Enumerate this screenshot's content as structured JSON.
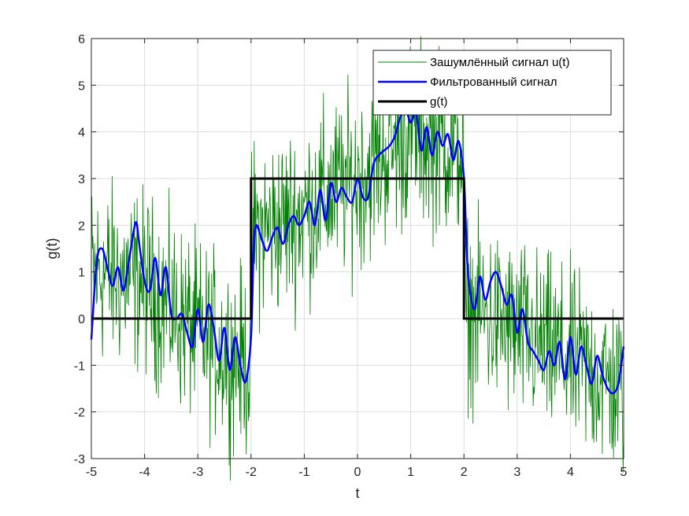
{
  "chart_data": {
    "type": "line",
    "title": "",
    "xlabel": "t",
    "ylabel": "g(t)",
    "xlim": [
      -5,
      5
    ],
    "ylim": [
      -3,
      6
    ],
    "grid": true,
    "legend_position": "top-right",
    "xticks": [
      -5,
      -4,
      -3,
      -2,
      -1,
      0,
      1,
      2,
      3,
      4,
      5
    ],
    "yticks": [
      -3,
      -2,
      -1,
      0,
      1,
      2,
      3,
      4,
      5,
      6
    ],
    "xtick_labels": [
      "-5",
      "-4",
      "-3",
      "-2",
      "-1",
      "0",
      "1",
      "2",
      "3",
      "4",
      "5"
    ],
    "ytick_labels": [
      "-3",
      "-2",
      "-1",
      "0",
      "1",
      "2",
      "3",
      "4",
      "5",
      "6"
    ],
    "series": [
      {
        "name": "Зашумлённый сигнал u(t)",
        "color": "#008000",
        "kind": "noisy",
        "x": [
          -5.0,
          -4.5,
          -4.0,
          -3.5,
          -3.0,
          -2.5,
          -2.01,
          -1.99,
          -1.5,
          -1.0,
          -0.5,
          0.0,
          0.5,
          1.0,
          1.5,
          1.99,
          2.01,
          2.5,
          3.0,
          3.5,
          4.0,
          4.5,
          5.0
        ],
        "y": [
          1.0,
          0.9,
          0.8,
          0.2,
          -0.3,
          -0.7,
          -1.0,
          1.8,
          2.0,
          2.3,
          2.7,
          3.0,
          3.5,
          4.0,
          3.8,
          3.6,
          0.2,
          0.0,
          -0.3,
          -0.6,
          -0.9,
          -1.2,
          -1.6
        ]
      },
      {
        "name": "Фильтрованный сигнал",
        "color": "#0000FF",
        "kind": "line",
        "x": [
          -5.0,
          -4.9,
          -4.8,
          -4.7,
          -4.6,
          -4.5,
          -4.4,
          -4.3,
          -4.2,
          -4.15,
          -4.1,
          -4.0,
          -3.9,
          -3.8,
          -3.7,
          -3.6,
          -3.5,
          -3.4,
          -3.3,
          -3.2,
          -3.1,
          -3.0,
          -2.9,
          -2.8,
          -2.7,
          -2.6,
          -2.5,
          -2.4,
          -2.3,
          -2.2,
          -2.1,
          -2.0,
          -1.95,
          -1.9,
          -1.8,
          -1.7,
          -1.6,
          -1.5,
          -1.4,
          -1.3,
          -1.2,
          -1.1,
          -1.0,
          -0.9,
          -0.8,
          -0.7,
          -0.6,
          -0.5,
          -0.4,
          -0.3,
          -0.2,
          -0.1,
          0.0,
          0.1,
          0.2,
          0.3,
          0.4,
          0.5,
          0.6,
          0.7,
          0.8,
          0.9,
          1.0,
          1.1,
          1.2,
          1.3,
          1.4,
          1.5,
          1.6,
          1.7,
          1.8,
          1.9,
          2.0,
          2.05,
          2.1,
          2.2,
          2.3,
          2.4,
          2.5,
          2.6,
          2.7,
          2.8,
          2.9,
          3.0,
          3.1,
          3.2,
          3.3,
          3.4,
          3.5,
          3.6,
          3.7,
          3.8,
          3.9,
          4.0,
          4.1,
          4.2,
          4.3,
          4.4,
          4.5,
          4.6,
          4.7,
          4.8,
          4.9,
          5.0
        ],
        "y": [
          -0.45,
          1.2,
          1.5,
          1.1,
          0.7,
          1.1,
          0.6,
          1.2,
          1.9,
          2.05,
          1.6,
          0.8,
          0.6,
          1.3,
          0.5,
          1.1,
          0.1,
          0.0,
          0.1,
          -0.3,
          -0.6,
          0.2,
          -0.5,
          0.3,
          -0.2,
          -0.9,
          -0.2,
          -1.1,
          -0.4,
          -1.0,
          -1.35,
          -0.4,
          1.5,
          2.0,
          1.7,
          1.45,
          1.75,
          1.95,
          1.6,
          2.0,
          2.2,
          2.0,
          2.2,
          2.5,
          2.0,
          2.75,
          2.1,
          2.9,
          2.5,
          2.8,
          2.6,
          2.5,
          3.0,
          2.6,
          2.6,
          3.3,
          3.5,
          3.6,
          3.7,
          3.9,
          4.3,
          4.5,
          4.2,
          4.4,
          3.6,
          4.1,
          3.5,
          4.0,
          3.7,
          3.95,
          3.4,
          3.8,
          3.0,
          1.5,
          0.7,
          0.2,
          0.9,
          0.4,
          0.8,
          1.0,
          0.7,
          0.3,
          0.5,
          -0.3,
          0.2,
          -0.5,
          -0.7,
          -0.9,
          -1.1,
          -0.7,
          -1.0,
          -0.5,
          -1.3,
          -0.4,
          -1.2,
          -0.6,
          -1.0,
          -1.4,
          -0.8,
          -1.2,
          -1.5,
          -1.6,
          -1.4,
          -0.6
        ]
      },
      {
        "name": "g(t)",
        "color": "#000000",
        "kind": "step",
        "x": [
          -5,
          -2,
          -2,
          2,
          2,
          5
        ],
        "y": [
          0,
          0,
          3,
          3,
          0,
          0
        ]
      }
    ]
  }
}
